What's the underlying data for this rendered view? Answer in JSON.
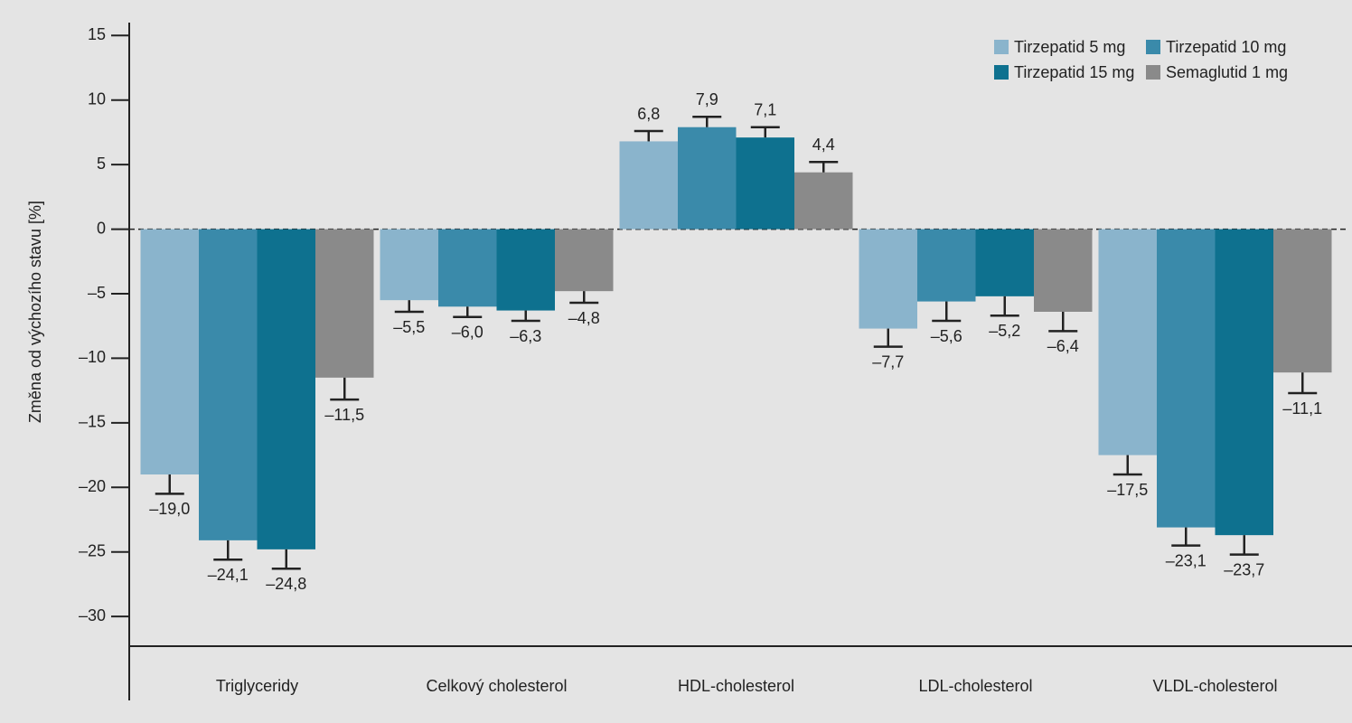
{
  "chart_data": {
    "type": "bar",
    "y_label": "Změna od výchozího stavu [%]",
    "categories": [
      "Triglyceridy",
      "Celkový cholesterol",
      "HDL-cholesterol",
      "LDL-cholesterol",
      "VLDL-cholesterol"
    ],
    "series": [
      {
        "name": "Tirzepatid 5 mg",
        "color": "#8ab4cc",
        "values": [
          -19.0,
          -5.5,
          6.8,
          -7.7,
          -17.5
        ],
        "errors": [
          1.5,
          0.9,
          0.8,
          1.4,
          1.5
        ],
        "value_labels": [
          "–19,0",
          "–5,5",
          "6,8",
          "–7,7",
          "–17,5"
        ]
      },
      {
        "name": "Tirzepatid 10 mg",
        "color": "#3a8aaa",
        "values": [
          -24.1,
          -6.0,
          7.9,
          -5.6,
          -23.1
        ],
        "errors": [
          1.5,
          0.8,
          0.8,
          1.5,
          1.4
        ],
        "value_labels": [
          "–24,1",
          "–6,0",
          "7,9",
          "–5,6",
          "–23,1"
        ]
      },
      {
        "name": "Tirzepatid 15 mg",
        "color": "#0e718f",
        "values": [
          -24.8,
          -6.3,
          7.1,
          -5.2,
          -23.7
        ],
        "errors": [
          1.5,
          0.8,
          0.8,
          1.5,
          1.5
        ],
        "value_labels": [
          "–24,8",
          "–6,3",
          "7,1",
          "–5,2",
          "–23,7"
        ]
      },
      {
        "name": "Semaglutid 1 mg",
        "color": "#8a8a8a",
        "values": [
          -11.5,
          -4.8,
          4.4,
          -6.4,
          -11.1
        ],
        "errors": [
          1.7,
          0.9,
          0.8,
          1.5,
          1.6
        ],
        "value_labels": [
          "–11,5",
          "–4,8",
          "4,4",
          "–6,4",
          "–11,1"
        ]
      }
    ],
    "ylim": [
      -32.3,
      16
    ],
    "yticks": [
      15,
      10,
      5,
      0,
      {
        "value": -5,
        "label": "–5"
      },
      {
        "value": -10,
        "label": "–10"
      },
      {
        "value": -15,
        "label": "–15"
      },
      {
        "value": -20,
        "label": "–20"
      },
      {
        "value": -25,
        "label": "–25"
      },
      {
        "value": -30,
        "label": "–30"
      }
    ],
    "zero_line": "dashed",
    "legend": "upper right"
  }
}
